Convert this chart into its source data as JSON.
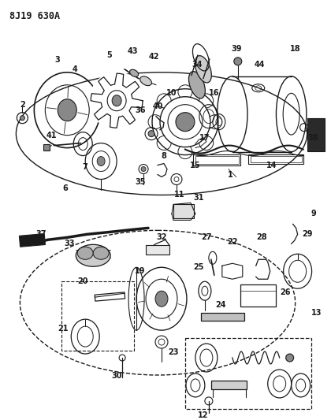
{
  "title": "8J19 630A",
  "bg_color": "#ffffff",
  "line_color": "#1a1a1a",
  "fig_width": 4.2,
  "fig_height": 5.33,
  "dpi": 100
}
